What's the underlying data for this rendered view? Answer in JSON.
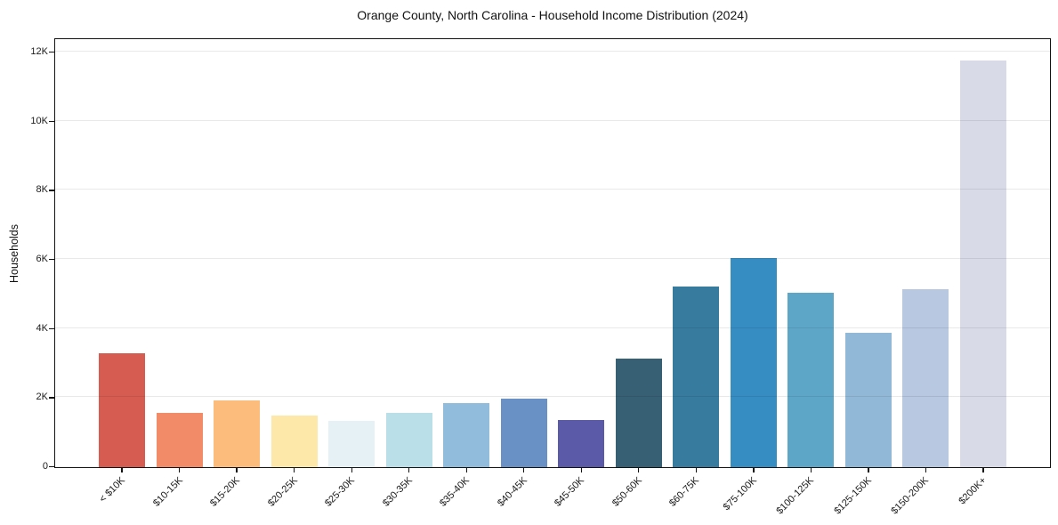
{
  "chart_data": {
    "type": "bar",
    "title": "Orange County, North Carolina - Household Income Distribution (2024)",
    "xlabel": "",
    "ylabel": "Households",
    "ylim": [
      0,
      12000
    ],
    "grid": true,
    "legend": "none",
    "y_ticks": [
      {
        "value": 0,
        "label": "0"
      },
      {
        "value": 2000,
        "label": "2K"
      },
      {
        "value": 4000,
        "label": "4K"
      },
      {
        "value": 6000,
        "label": "6K"
      },
      {
        "value": 8000,
        "label": "8K"
      },
      {
        "value": 10000,
        "label": "10K"
      },
      {
        "value": 12000,
        "label": "12K"
      }
    ],
    "categories": [
      "< $10K",
      "$10-15K",
      "$15-20K",
      "$20-25K",
      "$25-30K",
      "$30-35K",
      "$35-40K",
      "$40-45K",
      "$45-50K",
      "$50-60K",
      "$60-75K",
      "$75-100K",
      "$100-125K",
      "$125-150K",
      "$150-200K",
      "$200K+"
    ],
    "values": [
      3290,
      1580,
      1930,
      1490,
      1340,
      1570,
      1860,
      1980,
      1360,
      3140,
      5240,
      6060,
      5060,
      3880,
      5160,
      11760
    ],
    "bar_colors": [
      "#d65c52",
      "#f28b67",
      "#fcbc7c",
      "#fde8a9",
      "#e6f1f6",
      "#bbdfe9",
      "#92bcdc",
      "#6a91c5",
      "#5b5aa8",
      "#386074",
      "#377b9e",
      "#358dc1",
      "#5ea6c8",
      "#92b8d8",
      "#b8c8e1",
      "#d8dae8"
    ]
  }
}
